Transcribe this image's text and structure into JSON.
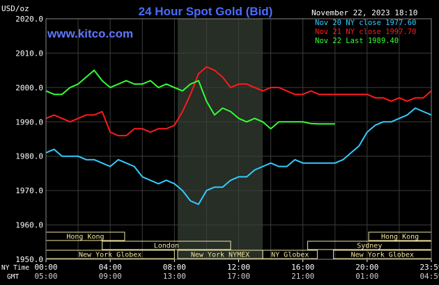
{
  "header": {
    "title": "24 Hour Spot Gold (Bid)",
    "units": "USD/oz",
    "timestamp": "November 22, 2023 18:10",
    "watermark": "www.kitco.com"
  },
  "legend": [
    {
      "label": "Nov 20 NY close 1977.60",
      "color": "#33ccff"
    },
    {
      "label": "Nov 21 NY close 1997.70",
      "color": "#ff1a1a"
    },
    {
      "label": "Nov 22 Last 1989.40",
      "color": "#33ff33"
    }
  ],
  "axis_labels": {
    "ny_time": "NY Time",
    "gmt": "GMT"
  },
  "x_ticks": [
    {
      "h": 0,
      "ny": "00:00",
      "gmt": "05:00"
    },
    {
      "h": 4,
      "ny": "04:00",
      "gmt": "09:00"
    },
    {
      "h": 8,
      "ny": "08:00",
      "gmt": "13:00"
    },
    {
      "h": 12,
      "ny": "12:00",
      "gmt": "17:00"
    },
    {
      "h": 16,
      "ny": "16:00",
      "gmt": "21:00"
    },
    {
      "h": 20,
      "ny": "20:00",
      "gmt": "01:00"
    },
    {
      "h": 24,
      "ny": "23:59",
      "gmt": "04:59"
    }
  ],
  "y_ticks": [
    "2020.0",
    "2010.0",
    "2000.0",
    "1990.0",
    "1980.0",
    "1970.0",
    "1960.0",
    "1950.0"
  ],
  "sessions": [
    {
      "label": "Hong Kong",
      "start": 0,
      "end": 4.9,
      "row": 0
    },
    {
      "label": "Hong Kong",
      "start": 20.1,
      "end": 24,
      "row": 0
    },
    {
      "label": "London",
      "start": 3.5,
      "end": 11.5,
      "row": 1
    },
    {
      "label": "Sydney",
      "start": 16.3,
      "end": 24,
      "row": 1
    },
    {
      "label": "New York Globex",
      "start": 0,
      "end": 8,
      "row": 2
    },
    {
      "label": "New York NYMEX",
      "start": 8.2,
      "end": 13.5,
      "row": 2
    },
    {
      "label": "NY Globex",
      "start": 13.5,
      "end": 16.9,
      "row": 2
    },
    {
      "label": "New York Globex",
      "start": 17.9,
      "end": 24,
      "row": 2
    }
  ],
  "colors": {
    "background": "#000000",
    "plot_area": "#000000",
    "grid": "#3d3d3d",
    "highlight": "#262e26",
    "title": "#4a6cff",
    "watermark": "#5f78ff",
    "session_box": "#f0e6a0",
    "text": "#ffffff"
  },
  "chart_data": {
    "type": "line",
    "xlabel": "NY Time",
    "ylabel": "USD/oz",
    "xlim_hours": [
      0,
      24
    ],
    "ylim": [
      1950,
      2020
    ],
    "highlight_hours": [
      8.2,
      13.5
    ],
    "grid": true,
    "series": [
      {
        "name": "Nov 20 NY close 1977.60",
        "color": "#33ccff",
        "x": [
          0,
          0.5,
          1,
          1.5,
          2,
          2.5,
          3,
          3.5,
          4,
          4.5,
          5,
          5.5,
          6,
          6.5,
          7,
          7.5,
          8,
          8.5,
          9,
          9.5,
          10,
          10.5,
          11,
          11.5,
          12,
          12.5,
          13,
          13.5,
          14,
          14.5,
          15,
          15.5,
          16,
          16.5,
          17,
          17.5,
          18,
          18.5,
          19,
          19.5,
          20,
          20.5,
          21,
          21.5,
          22,
          22.5,
          23,
          23.5,
          24
        ],
        "y": [
          1981,
          1982,
          1980,
          1980,
          1980,
          1979,
          1979,
          1978,
          1977,
          1979,
          1978,
          1977,
          1974,
          1973,
          1972,
          1973,
          1972,
          1970,
          1967,
          1966,
          1970,
          1971,
          1971,
          1973,
          1974,
          1974,
          1976,
          1977,
          1978,
          1977,
          1977,
          1979,
          1978,
          1978,
          1978,
          1978,
          1978,
          1979,
          1981,
          1983,
          1987,
          1989,
          1990,
          1990,
          1991,
          1992,
          1994,
          1993,
          1992
        ]
      },
      {
        "name": "Nov 21 NY close 1997.70",
        "color": "#ff1a1a",
        "x": [
          0,
          0.5,
          1,
          1.5,
          2,
          2.5,
          3,
          3.5,
          4,
          4.5,
          5,
          5.5,
          6,
          6.5,
          7,
          7.5,
          8,
          8.5,
          9,
          9.5,
          10,
          10.5,
          11,
          11.5,
          12,
          12.5,
          13,
          13.5,
          14,
          14.5,
          15,
          15.5,
          16,
          16.5,
          17,
          17.5,
          18,
          18.5,
          19,
          19.5,
          20,
          20.5,
          21,
          21.5,
          22,
          22.5,
          23,
          23.5,
          24
        ],
        "y": [
          1991,
          1992,
          1991,
          1990,
          1991,
          1992,
          1992,
          1993,
          1987,
          1986,
          1986,
          1988,
          1988,
          1987,
          1988,
          1988,
          1989,
          1993,
          1998,
          2004,
          2006,
          2005,
          2003,
          2000,
          2001,
          2001,
          2000,
          1999,
          2000,
          2000,
          1999,
          1998,
          1998,
          1999,
          1998,
          1998,
          1998,
          1998,
          1998,
          1998,
          1998,
          1997,
          1997,
          1996,
          1997,
          1996,
          1997,
          1997,
          1999
        ]
      },
      {
        "name": "Nov 22 Last 1989.40",
        "color": "#33ff33",
        "x": [
          0,
          0.5,
          1,
          1.5,
          2,
          2.5,
          3,
          3.5,
          4,
          4.5,
          5,
          5.5,
          6,
          6.5,
          7,
          7.5,
          8,
          8.5,
          9,
          9.5,
          10,
          10.5,
          11,
          11.5,
          12,
          12.5,
          13,
          13.5,
          14,
          14.5,
          15,
          15.5,
          16,
          16.5,
          17,
          17.5,
          18
        ],
        "y": [
          1999,
          1998,
          1998,
          2000,
          2001,
          2003,
          2005,
          2002,
          2000,
          2001,
          2002,
          2001,
          2001,
          2002,
          2000,
          2001,
          2000,
          1999,
          2001,
          2002,
          1996,
          1992,
          1994,
          1993,
          1991,
          1990,
          1991,
          1990,
          1988,
          1990,
          1990,
          1990,
          1990,
          1989.5,
          1989.4,
          1989.4,
          1989.4
        ]
      }
    ]
  }
}
